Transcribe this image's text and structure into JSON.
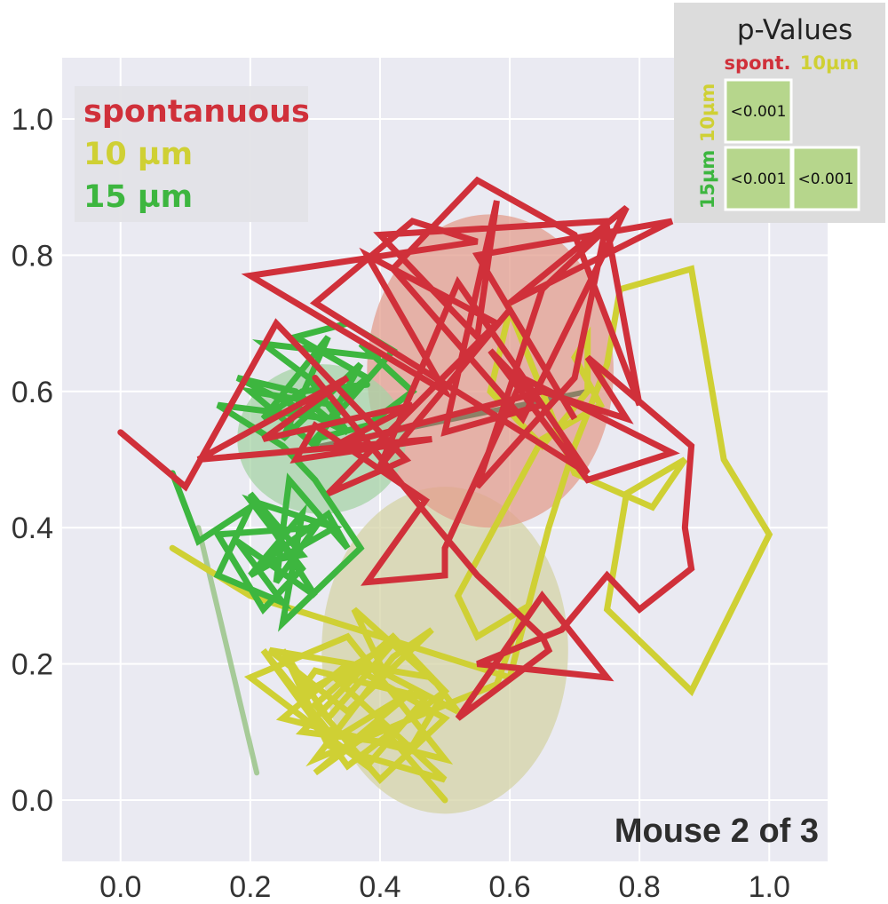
{
  "chart_data": {
    "type": "line",
    "title": "",
    "xlabel": "",
    "ylabel": "",
    "xlim": [
      -0.09,
      1.09
    ],
    "ylim": [
      -0.09,
      1.09
    ],
    "xticks": [
      "0.0",
      "0.2",
      "0.4",
      "0.6",
      "0.8",
      "1.0"
    ],
    "yticks": [
      "0.0",
      "0.2",
      "0.4",
      "0.6",
      "0.8",
      "1.0"
    ],
    "grid": true,
    "legend_position": "top-left",
    "annotation": "Mouse 2 of 3",
    "series": [
      {
        "name": "spontanuous",
        "color": "#d0303a",
        "ellipse": {
          "cx": 0.57,
          "cy": 0.63,
          "rx": 0.19,
          "ry": 0.23
        },
        "x": [
          0.0,
          0.1,
          0.24,
          0.44,
          0.32,
          0.58,
          0.38,
          0.5,
          0.2,
          0.55,
          0.45,
          0.3,
          0.72,
          0.65,
          0.5,
          0.58,
          0.55,
          0.4,
          0.75,
          0.7,
          0.55,
          0.65,
          0.75,
          0.8,
          0.7,
          0.55,
          0.42,
          0.62,
          0.78,
          0.6,
          0.85,
          0.55,
          0.7,
          0.6,
          0.4,
          0.52,
          0.65,
          0.57,
          0.72,
          0.85,
          0.62,
          0.5,
          0.5,
          0.38,
          0.47,
          0.3,
          0.27,
          0.48,
          0.12,
          0.35,
          0.22,
          0.45,
          0.33,
          0.65,
          0.78,
          0.72,
          0.88,
          0.87,
          0.88,
          0.8,
          0.75,
          0.68,
          0.55,
          0.75,
          0.65,
          0.52,
          0.66,
          0.65,
          0.55,
          0.48,
          0.3
        ],
        "y": [
          0.54,
          0.46,
          0.7,
          0.5,
          0.45,
          0.7,
          0.8,
          0.6,
          0.77,
          0.82,
          0.85,
          0.73,
          0.48,
          0.58,
          0.54,
          0.88,
          0.68,
          0.83,
          0.85,
          0.62,
          0.46,
          0.75,
          0.84,
          0.58,
          0.83,
          0.91,
          0.78,
          0.56,
          0.87,
          0.73,
          0.85,
          0.8,
          0.56,
          0.72,
          0.49,
          0.76,
          0.58,
          0.66,
          0.47,
          0.51,
          0.62,
          0.37,
          0.33,
          0.32,
          0.44,
          0.55,
          0.5,
          0.53,
          0.5,
          0.62,
          0.53,
          0.58,
          0.52,
          0.6,
          0.56,
          0.65,
          0.52,
          0.4,
          0.34,
          0.28,
          0.33,
          0.25,
          0.2,
          0.18,
          0.3,
          0.12,
          0.22,
          0.24,
          0.33,
          0.41,
          0.62
        ]
      },
      {
        "name": "10 µm",
        "color": "#cfd034",
        "ellipse": {
          "cx": 0.5,
          "cy": 0.22,
          "rx": 0.19,
          "ry": 0.24
        },
        "x": [
          0.08,
          0.2,
          0.6,
          0.66,
          0.7,
          0.75,
          0.77,
          0.88,
          0.93,
          1.0,
          0.88,
          0.75,
          0.78,
          0.87,
          0.82,
          0.7,
          0.6,
          0.57,
          0.65,
          0.72,
          0.72,
          0.7,
          0.74,
          0.65,
          0.52,
          0.55,
          0.62,
          0.58,
          0.45,
          0.3,
          0.42,
          0.48,
          0.35,
          0.23,
          0.48,
          0.52,
          0.38,
          0.28,
          0.45,
          0.5,
          0.36,
          0.4,
          0.33,
          0.5,
          0.32,
          0.25,
          0.32,
          0.42,
          0.27,
          0.3,
          0.47,
          0.38,
          0.2,
          0.35,
          0.5,
          0.25,
          0.35,
          0.5,
          0.4,
          0.3,
          0.42,
          0.5,
          0.35,
          0.22,
          0.33,
          0.45,
          0.3,
          0.4,
          0.5
        ],
        "y": [
          0.37,
          0.3,
          0.18,
          0.4,
          0.52,
          0.64,
          0.75,
          0.78,
          0.5,
          0.39,
          0.16,
          0.28,
          0.45,
          0.5,
          0.43,
          0.48,
          0.72,
          0.6,
          0.52,
          0.6,
          0.68,
          0.65,
          0.58,
          0.53,
          0.3,
          0.24,
          0.28,
          0.17,
          0.12,
          0.06,
          0.21,
          0.25,
          0.13,
          0.22,
          0.18,
          0.13,
          0.2,
          0.1,
          0.08,
          0.16,
          0.28,
          0.2,
          0.18,
          0.03,
          0.08,
          0.22,
          0.12,
          0.23,
          0.15,
          0.19,
          0.15,
          0.05,
          0.18,
          0.24,
          0.06,
          0.12,
          0.2,
          0.12,
          0.03,
          0.14,
          0.24,
          0.16,
          0.05,
          0.22,
          0.09,
          0.16,
          0.04,
          0.11,
          0.0
        ]
      },
      {
        "name": "15 µm",
        "color": "#3db63f",
        "ellipse": {
          "cx": 0.31,
          "cy": 0.53,
          "rx": 0.13,
          "ry": 0.11
        },
        "x": [
          0.08,
          0.12,
          0.2,
          0.15,
          0.25,
          0.18,
          0.3,
          0.2,
          0.28,
          0.22,
          0.32,
          0.35,
          0.26,
          0.24,
          0.3,
          0.15,
          0.22,
          0.28,
          0.2,
          0.33,
          0.2,
          0.28,
          0.25,
          0.37,
          0.3,
          0.25,
          0.15,
          0.32,
          0.27,
          0.18,
          0.35,
          0.29,
          0.22,
          0.4,
          0.37,
          0.45,
          0.38,
          0.3,
          0.42,
          0.35,
          0.27,
          0.38,
          0.33,
          0.2,
          0.3,
          0.37,
          0.25,
          0.32,
          0.22,
          0.28,
          0.38
        ],
        "y": [
          0.48,
          0.38,
          0.43,
          0.33,
          0.29,
          0.38,
          0.3,
          0.45,
          0.36,
          0.35,
          0.42,
          0.37,
          0.47,
          0.32,
          0.4,
          0.39,
          0.28,
          0.34,
          0.44,
          0.4,
          0.33,
          0.42,
          0.26,
          0.37,
          0.47,
          0.52,
          0.58,
          0.56,
          0.6,
          0.62,
          0.54,
          0.62,
          0.67,
          0.65,
          0.67,
          0.6,
          0.55,
          0.53,
          0.66,
          0.7,
          0.68,
          0.62,
          0.58,
          0.6,
          0.52,
          0.64,
          0.53,
          0.68,
          0.56,
          0.6,
          0.61
        ]
      }
    ],
    "extra_segments": [
      {
        "color": "#8fbf7a",
        "x": [
          0.21,
          0.12
        ],
        "y": [
          0.04,
          0.4
        ]
      },
      {
        "color": "#6e7050",
        "x": [
          0.31,
          0.72
        ],
        "y": [
          0.52,
          0.6
        ]
      }
    ],
    "pvalues": {
      "title": "p-Values",
      "col_labels": [
        "spont.",
        "10µm"
      ],
      "row_labels": [
        "10µm",
        "15µm"
      ],
      "cells": [
        {
          "row": 0,
          "col": 0,
          "text": "<0.001"
        },
        {
          "row": 1,
          "col": 0,
          "text": "<0.001"
        },
        {
          "row": 1,
          "col": 1,
          "text": "<0.001"
        }
      ],
      "cell_color": "#b6d68c"
    }
  }
}
